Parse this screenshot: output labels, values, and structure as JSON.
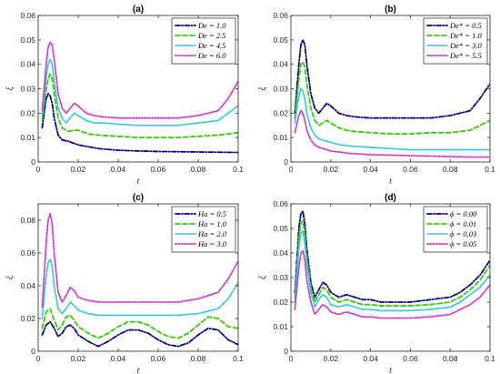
{
  "chart_data": [
    {
      "type": "line",
      "panel_title": "(a)",
      "xlabel": "t",
      "ylabel": "ξ",
      "xlim": [
        0,
        0.1
      ],
      "ylim": [
        0,
        0.06
      ],
      "xticks": [
        0,
        0.02,
        0.04,
        0.06,
        0.08,
        0.1
      ],
      "xtick_labels": [
        "0",
        "0.02",
        "0.04",
        "0.06",
        "0.08",
        "0.1"
      ],
      "yticks": [
        0,
        0.01,
        0.02,
        0.03,
        0.04,
        0.05,
        0.06
      ],
      "ytick_labels": [
        "0",
        "0.01",
        "0.02",
        "0.03",
        "0.04",
        "0.05",
        "0.06"
      ],
      "legend_position": "top-right",
      "series": [
        {
          "name": "De = 1.0",
          "color": "#00008B",
          "dash": "dashdot",
          "x": [
            0.002,
            0.004,
            0.005,
            0.006,
            0.007,
            0.008,
            0.01,
            0.012,
            0.015,
            0.02,
            0.03,
            0.04,
            0.05,
            0.06,
            0.07,
            0.08,
            0.09,
            0.1
          ],
          "y": [
            0.014,
            0.026,
            0.028,
            0.027,
            0.024,
            0.018,
            0.011,
            0.009,
            0.0085,
            0.007,
            0.0055,
            0.0048,
            0.0045,
            0.0043,
            0.0042,
            0.0041,
            0.004,
            0.0039
          ]
        },
        {
          "name": "De = 2.5",
          "color": "#33CC00",
          "dash": "dashed",
          "x": [
            0.002,
            0.004,
            0.005,
            0.006,
            0.007,
            0.008,
            0.01,
            0.012,
            0.015,
            0.018,
            0.02,
            0.025,
            0.03,
            0.04,
            0.05,
            0.06,
            0.07,
            0.08,
            0.09,
            0.1
          ],
          "y": [
            0.017,
            0.03,
            0.034,
            0.036,
            0.034,
            0.028,
            0.018,
            0.014,
            0.0125,
            0.013,
            0.013,
            0.0115,
            0.011,
            0.0105,
            0.01,
            0.01,
            0.01,
            0.0105,
            0.011,
            0.012
          ]
        },
        {
          "name": "De = 4.5",
          "color": "#33C6E6",
          "dash": "solid",
          "x": [
            0.002,
            0.004,
            0.005,
            0.006,
            0.007,
            0.008,
            0.01,
            0.012,
            0.014,
            0.016,
            0.018,
            0.02,
            0.024,
            0.028,
            0.032,
            0.04,
            0.05,
            0.06,
            0.07,
            0.08,
            0.09,
            0.095,
            0.1
          ],
          "y": [
            0.019,
            0.035,
            0.04,
            0.042,
            0.04,
            0.033,
            0.022,
            0.018,
            0.016,
            0.018,
            0.02,
            0.019,
            0.017,
            0.016,
            0.016,
            0.0155,
            0.015,
            0.015,
            0.015,
            0.016,
            0.017,
            0.02,
            0.023
          ]
        },
        {
          "name": "De = 6.0",
          "color": "#CC33CC",
          "dash": "dotted",
          "x": [
            0.002,
            0.004,
            0.005,
            0.006,
            0.007,
            0.008,
            0.01,
            0.012,
            0.014,
            0.016,
            0.018,
            0.02,
            0.024,
            0.028,
            0.032,
            0.04,
            0.05,
            0.06,
            0.07,
            0.08,
            0.09,
            0.095,
            0.1
          ],
          "y": [
            0.021,
            0.04,
            0.047,
            0.049,
            0.048,
            0.042,
            0.028,
            0.022,
            0.02,
            0.022,
            0.024,
            0.023,
            0.02,
            0.019,
            0.0185,
            0.018,
            0.018,
            0.018,
            0.018,
            0.019,
            0.021,
            0.026,
            0.033
          ]
        }
      ]
    },
    {
      "type": "line",
      "panel_title": "(b)",
      "xlabel": "t",
      "ylabel": "ξ",
      "xlim": [
        0,
        0.1
      ],
      "ylim": [
        0,
        0.06
      ],
      "xticks": [
        0,
        0.02,
        0.04,
        0.06,
        0.08,
        0.1
      ],
      "xtick_labels": [
        "0",
        "0.02",
        "0.04",
        "0.06",
        "0.08",
        "0.1"
      ],
      "yticks": [
        0,
        0.01,
        0.02,
        0.03,
        0.04,
        0.05,
        0.06
      ],
      "ytick_labels": [
        "0",
        "0.01",
        "0.02",
        "0.03",
        "0.04",
        "0.05",
        "0.06"
      ],
      "legend_position": "top-right",
      "series": [
        {
          "name": "De* = 0.5",
          "color": "#00008B",
          "dash": "dashdot",
          "x": [
            0.002,
            0.004,
            0.005,
            0.006,
            0.007,
            0.008,
            0.01,
            0.012,
            0.014,
            0.016,
            0.018,
            0.02,
            0.024,
            0.028,
            0.032,
            0.04,
            0.05,
            0.06,
            0.07,
            0.08,
            0.09,
            0.095,
            0.1
          ],
          "y": [
            0.02,
            0.04,
            0.048,
            0.05,
            0.048,
            0.04,
            0.028,
            0.022,
            0.02,
            0.022,
            0.024,
            0.023,
            0.02,
            0.019,
            0.0185,
            0.018,
            0.018,
            0.018,
            0.018,
            0.019,
            0.021,
            0.026,
            0.032
          ]
        },
        {
          "name": "De* = 1.0",
          "color": "#33CC00",
          "dash": "dashed",
          "x": [
            0.002,
            0.004,
            0.005,
            0.006,
            0.007,
            0.008,
            0.01,
            0.012,
            0.014,
            0.016,
            0.018,
            0.02,
            0.024,
            0.028,
            0.032,
            0.04,
            0.05,
            0.06,
            0.07,
            0.08,
            0.09,
            0.095,
            0.1
          ],
          "y": [
            0.018,
            0.034,
            0.04,
            0.041,
            0.039,
            0.032,
            0.022,
            0.017,
            0.015,
            0.016,
            0.017,
            0.016,
            0.014,
            0.013,
            0.0125,
            0.012,
            0.0115,
            0.0115,
            0.012,
            0.012,
            0.013,
            0.015,
            0.017
          ]
        },
        {
          "name": "De* = 3.0",
          "color": "#33C6E6",
          "dash": "solid",
          "x": [
            0.002,
            0.004,
            0.005,
            0.006,
            0.007,
            0.008,
            0.01,
            0.012,
            0.014,
            0.016,
            0.018,
            0.02,
            0.025,
            0.03,
            0.04,
            0.05,
            0.06,
            0.07,
            0.08,
            0.09,
            0.1
          ],
          "y": [
            0.016,
            0.027,
            0.03,
            0.029,
            0.026,
            0.02,
            0.014,
            0.011,
            0.0095,
            0.009,
            0.0085,
            0.008,
            0.007,
            0.0065,
            0.006,
            0.0055,
            0.005,
            0.005,
            0.005,
            0.005,
            0.005
          ]
        },
        {
          "name": "De* = 5.5",
          "color": "#CC33CC",
          "dash": "dotted",
          "x": [
            0.002,
            0.004,
            0.005,
            0.006,
            0.007,
            0.008,
            0.01,
            0.012,
            0.014,
            0.016,
            0.018,
            0.02,
            0.025,
            0.03,
            0.04,
            0.05,
            0.06,
            0.07,
            0.08,
            0.09,
            0.1
          ],
          "y": [
            0.012,
            0.019,
            0.021,
            0.02,
            0.017,
            0.013,
            0.009,
            0.007,
            0.006,
            0.0055,
            0.005,
            0.0045,
            0.004,
            0.0035,
            0.003,
            0.0028,
            0.0026,
            0.0024,
            0.0022,
            0.002,
            0.002
          ]
        }
      ]
    },
    {
      "type": "line",
      "panel_title": "(c)",
      "xlabel": "t",
      "ylabel": "ξ",
      "xlim": [
        0,
        0.1
      ],
      "ylim": [
        0,
        0.09
      ],
      "xticks": [
        0,
        0.02,
        0.04,
        0.06,
        0.08,
        0.1
      ],
      "xtick_labels": [
        "0",
        "0.02",
        "0.04",
        "0.06",
        "0.08",
        "0.1"
      ],
      "yticks": [
        0,
        0.02,
        0.04,
        0.06,
        0.08
      ],
      "ytick_labels": [
        "0",
        "0.02",
        "0.04",
        "0.06",
        "0.08"
      ],
      "legend_position": "top-right",
      "series": [
        {
          "name": "Ha = 0.5",
          "color": "#00008B",
          "dash": "dashdot",
          "x": [
            0.002,
            0.004,
            0.006,
            0.008,
            0.01,
            0.012,
            0.014,
            0.016,
            0.018,
            0.02,
            0.025,
            0.03,
            0.035,
            0.04,
            0.045,
            0.05,
            0.055,
            0.06,
            0.065,
            0.07,
            0.075,
            0.08,
            0.085,
            0.09,
            0.095,
            0.1
          ],
          "y": [
            0.01,
            0.016,
            0.018,
            0.014,
            0.009,
            0.011,
            0.015,
            0.016,
            0.014,
            0.01,
            0.006,
            0.003,
            0.006,
            0.01,
            0.013,
            0.013,
            0.011,
            0.007,
            0.004,
            0.003,
            0.005,
            0.01,
            0.014,
            0.013,
            0.007,
            0.004
          ]
        },
        {
          "name": "Ha = 1.0",
          "color": "#33CC00",
          "dash": "dashed",
          "x": [
            0.002,
            0.004,
            0.006,
            0.008,
            0.01,
            0.012,
            0.014,
            0.016,
            0.018,
            0.02,
            0.025,
            0.03,
            0.035,
            0.04,
            0.045,
            0.05,
            0.055,
            0.06,
            0.065,
            0.07,
            0.075,
            0.08,
            0.085,
            0.09,
            0.095,
            0.1
          ],
          "y": [
            0.014,
            0.024,
            0.026,
            0.019,
            0.013,
            0.016,
            0.021,
            0.022,
            0.019,
            0.015,
            0.011,
            0.008,
            0.011,
            0.015,
            0.018,
            0.018,
            0.016,
            0.012,
            0.009,
            0.008,
            0.011,
            0.016,
            0.021,
            0.02,
            0.015,
            0.014
          ]
        },
        {
          "name": "Ha = 2.0",
          "color": "#33C6E6",
          "dash": "solid",
          "x": [
            0.002,
            0.004,
            0.005,
            0.006,
            0.007,
            0.008,
            0.01,
            0.012,
            0.014,
            0.016,
            0.018,
            0.02,
            0.025,
            0.03,
            0.04,
            0.05,
            0.06,
            0.07,
            0.08,
            0.09,
            0.095,
            0.1
          ],
          "y": [
            0.02,
            0.046,
            0.054,
            0.056,
            0.052,
            0.04,
            0.026,
            0.023,
            0.026,
            0.03,
            0.028,
            0.025,
            0.023,
            0.022,
            0.022,
            0.022,
            0.022,
            0.022,
            0.023,
            0.026,
            0.032,
            0.042
          ]
        },
        {
          "name": "Ha = 3.0",
          "color": "#CC33CC",
          "dash": "dotted",
          "x": [
            0.002,
            0.004,
            0.005,
            0.006,
            0.007,
            0.008,
            0.01,
            0.012,
            0.014,
            0.016,
            0.018,
            0.02,
            0.025,
            0.03,
            0.04,
            0.05,
            0.06,
            0.07,
            0.08,
            0.09,
            0.095,
            0.1
          ],
          "y": [
            0.027,
            0.066,
            0.08,
            0.084,
            0.078,
            0.06,
            0.036,
            0.03,
            0.034,
            0.039,
            0.037,
            0.033,
            0.031,
            0.03,
            0.03,
            0.03,
            0.03,
            0.03,
            0.032,
            0.036,
            0.044,
            0.055
          ]
        }
      ]
    },
    {
      "type": "line",
      "panel_title": "(d)",
      "xlabel": "t",
      "ylabel": "ξ",
      "xlim": [
        0,
        0.1
      ],
      "ylim": [
        0,
        0.06
      ],
      "xticks": [
        0,
        0.02,
        0.04,
        0.06,
        0.08,
        0.1
      ],
      "xtick_labels": [
        "0",
        "0.02",
        "0.04",
        "0.06",
        "0.08",
        "0.1"
      ],
      "yticks": [
        0,
        0.01,
        0.02,
        0.03,
        0.04,
        0.05,
        0.06
      ],
      "ytick_labels": [
        "0",
        "0.01",
        "0.02",
        "0.03",
        "0.04",
        "0.05",
        "0.06"
      ],
      "legend_position": "top-right",
      "series": [
        {
          "name": "ϕ = 0.00",
          "color": "#00008B",
          "dash": "dashdot",
          "x": [
            0.002,
            0.004,
            0.005,
            0.006,
            0.007,
            0.008,
            0.01,
            0.012,
            0.014,
            0.016,
            0.018,
            0.02,
            0.024,
            0.028,
            0.032,
            0.036,
            0.04,
            0.045,
            0.05,
            0.06,
            0.07,
            0.08,
            0.085,
            0.09,
            0.095,
            0.1
          ],
          "y": [
            0.024,
            0.05,
            0.056,
            0.057,
            0.052,
            0.042,
            0.028,
            0.022,
            0.025,
            0.028,
            0.027,
            0.024,
            0.022,
            0.023,
            0.022,
            0.021,
            0.021,
            0.02,
            0.02,
            0.02,
            0.021,
            0.022,
            0.024,
            0.027,
            0.031,
            0.037
          ]
        },
        {
          "name": "ϕ = 0.01",
          "color": "#33CC00",
          "dash": "dashed",
          "x": [
            0.002,
            0.004,
            0.005,
            0.006,
            0.007,
            0.008,
            0.01,
            0.012,
            0.014,
            0.016,
            0.018,
            0.02,
            0.024,
            0.028,
            0.032,
            0.036,
            0.04,
            0.045,
            0.05,
            0.06,
            0.07,
            0.08,
            0.085,
            0.09,
            0.095,
            0.1
          ],
          "y": [
            0.022,
            0.046,
            0.052,
            0.053,
            0.048,
            0.039,
            0.026,
            0.02,
            0.023,
            0.026,
            0.025,
            0.022,
            0.02,
            0.021,
            0.02,
            0.019,
            0.019,
            0.0185,
            0.0185,
            0.0185,
            0.019,
            0.02,
            0.022,
            0.025,
            0.029,
            0.035
          ]
        },
        {
          "name": "ϕ = 0.03",
          "color": "#33C6E6",
          "dash": "solid",
          "x": [
            0.002,
            0.004,
            0.005,
            0.006,
            0.007,
            0.008,
            0.01,
            0.012,
            0.014,
            0.016,
            0.018,
            0.02,
            0.024,
            0.028,
            0.032,
            0.036,
            0.04,
            0.045,
            0.05,
            0.06,
            0.07,
            0.08,
            0.085,
            0.09,
            0.095,
            0.1
          ],
          "y": [
            0.02,
            0.042,
            0.048,
            0.049,
            0.044,
            0.035,
            0.024,
            0.018,
            0.021,
            0.023,
            0.022,
            0.019,
            0.018,
            0.019,
            0.018,
            0.017,
            0.017,
            0.0165,
            0.0165,
            0.0165,
            0.017,
            0.018,
            0.02,
            0.023,
            0.026,
            0.031
          ]
        },
        {
          "name": "ϕ = 0.05",
          "color": "#CC33CC",
          "dash": "dotted",
          "x": [
            0.002,
            0.004,
            0.005,
            0.006,
            0.007,
            0.008,
            0.01,
            0.012,
            0.014,
            0.016,
            0.018,
            0.02,
            0.024,
            0.028,
            0.032,
            0.036,
            0.04,
            0.045,
            0.05,
            0.06,
            0.07,
            0.08,
            0.085,
            0.09,
            0.095,
            0.1
          ],
          "y": [
            0.017,
            0.034,
            0.04,
            0.041,
            0.037,
            0.029,
            0.02,
            0.015,
            0.017,
            0.019,
            0.018,
            0.016,
            0.015,
            0.016,
            0.015,
            0.014,
            0.014,
            0.0135,
            0.0135,
            0.0135,
            0.014,
            0.015,
            0.017,
            0.019,
            0.022,
            0.027
          ]
        }
      ]
    }
  ]
}
